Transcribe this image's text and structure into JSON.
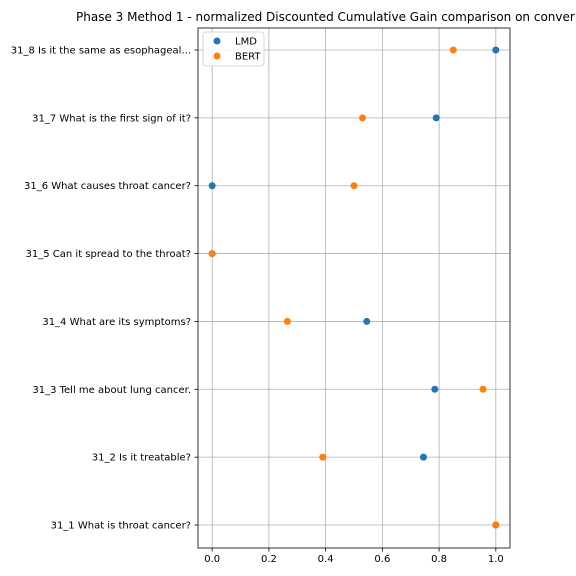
{
  "chart_data": {
    "type": "scatter",
    "title": "Phase 3 Method 1 - normalized Discounted Cumulative Gain comparison on conver",
    "xlabel": "",
    "ylabel": "",
    "xlim": [
      -0.05,
      1.05
    ],
    "xticks": [
      0.0,
      0.2,
      0.4,
      0.6,
      0.8,
      1.0
    ],
    "xtick_labels": [
      "0.0",
      "0.2",
      "0.4",
      "0.6",
      "0.8",
      "1.0"
    ],
    "categories": [
      "31_8 Is it the same as esophageal...",
      "31_7 What is the first sign of it?",
      "31_6 What causes throat cancer?",
      "31_5 Can it spread to the throat?",
      "31_4 What are its symptoms?",
      "31_3 Tell me about lung cancer.",
      "31_2 Is it treatable?",
      "31_1 What is throat cancer?"
    ],
    "series": [
      {
        "name": "LMD",
        "color": "#1f77b4",
        "values": [
          1.0,
          0.79,
          0.0,
          0.0,
          0.545,
          0.785,
          0.745,
          1.0
        ]
      },
      {
        "name": "BERT",
        "color": "#ff7f0e",
        "values": [
          0.85,
          0.53,
          0.5,
          0.0,
          0.265,
          0.955,
          0.39,
          1.0
        ]
      }
    ],
    "grid": true,
    "legend_position": "top-left"
  }
}
